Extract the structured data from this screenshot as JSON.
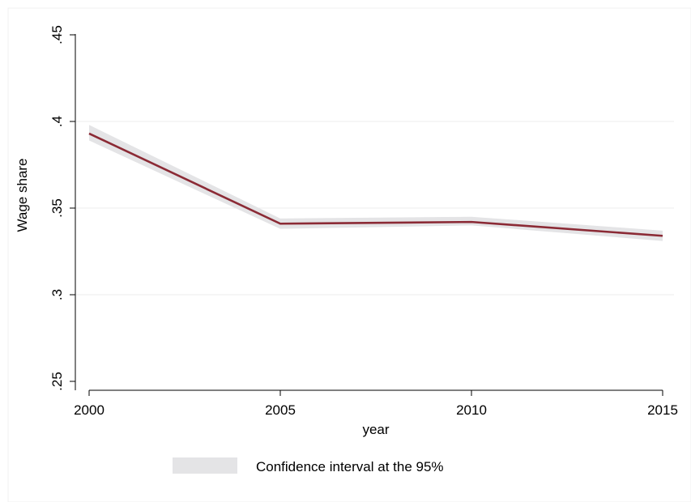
{
  "chart_data": {
    "type": "line",
    "title": "",
    "xlabel": "year",
    "ylabel": "Wage share",
    "x": [
      2000,
      2005,
      2010,
      2015
    ],
    "x_ticks": [
      "2000",
      "2005",
      "2010",
      "2015"
    ],
    "xlim": [
      2000,
      2015
    ],
    "y_ticks": [
      ".25",
      ".3",
      ".35",
      ".4",
      ".45"
    ],
    "y_tick_values": [
      0.25,
      0.3,
      0.35,
      0.4,
      0.45
    ],
    "ylim": [
      0.25,
      0.45
    ],
    "grid": true,
    "legend_position": "bottom",
    "series": [
      {
        "values": [
          0.393,
          0.341,
          0.342,
          0.334
        ],
        "color": "#8b2a35"
      }
    ],
    "confidence_band": {
      "name": "Confidence interval at the 95%",
      "lower": [
        0.389,
        0.338,
        0.34,
        0.331
      ],
      "upper": [
        0.398,
        0.344,
        0.345,
        0.337
      ],
      "color": "#e4e4e6"
    }
  }
}
